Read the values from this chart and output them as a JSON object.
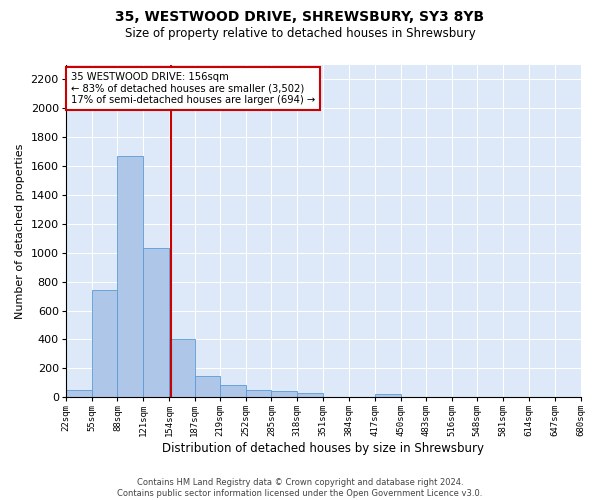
{
  "title_line1": "35, WESTWOOD DRIVE, SHREWSBURY, SY3 8YB",
  "title_line2": "Size of property relative to detached houses in Shrewsbury",
  "xlabel": "Distribution of detached houses by size in Shrewsbury",
  "ylabel": "Number of detached properties",
  "footer_line1": "Contains HM Land Registry data © Crown copyright and database right 2024.",
  "footer_line2": "Contains public sector information licensed under the Open Government Licence v3.0.",
  "annotation_line1": "35 WESTWOOD DRIVE: 156sqm",
  "annotation_line2": "← 83% of detached houses are smaller (3,502)",
  "annotation_line3": "17% of semi-detached houses are larger (694) →",
  "property_size": 156,
  "bin_edges": [
    22,
    55,
    88,
    121,
    154,
    187,
    219,
    252,
    285,
    318,
    351,
    384,
    417,
    450,
    483,
    516,
    548,
    581,
    614,
    647,
    680
  ],
  "bar_values": [
    50,
    740,
    1670,
    1035,
    405,
    150,
    83,
    48,
    42,
    28,
    0,
    0,
    22,
    0,
    0,
    0,
    0,
    0,
    0,
    0
  ],
  "bar_color": "#aec6e8",
  "bar_edge_color": "#5b9bd5",
  "line_color": "#cc0000",
  "annotation_box_edge_color": "#cc0000",
  "background_color": "#dde8f8",
  "grid_color": "#ffffff",
  "ylim": [
    0,
    2300
  ],
  "yticks": [
    0,
    200,
    400,
    600,
    800,
    1000,
    1200,
    1400,
    1600,
    1800,
    2000,
    2200
  ]
}
